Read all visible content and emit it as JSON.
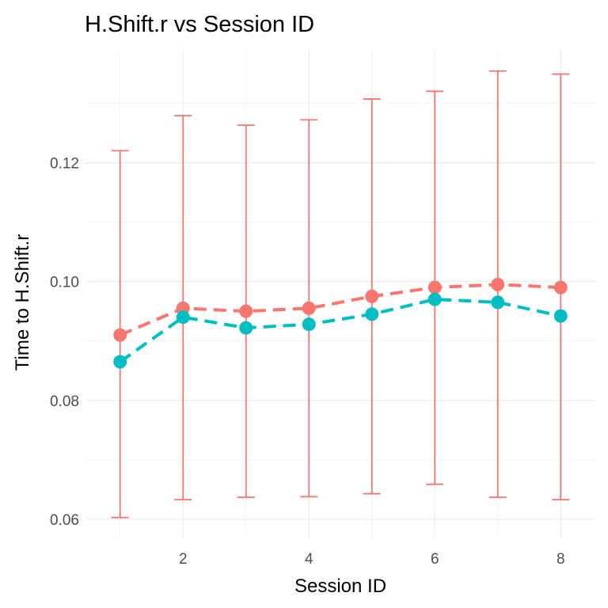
{
  "chart_data": {
    "type": "line",
    "title": "H.Shift.r vs Session ID",
    "xlabel": "Session ID",
    "ylabel": "Time to H.Shift.r",
    "x": [
      1,
      2,
      3,
      4,
      5,
      6,
      7,
      8
    ],
    "xlim": [
      0.45,
      8.55
    ],
    "ylim": [
      0.0568,
      0.1391
    ],
    "x_ticks": [
      2,
      4,
      6,
      8
    ],
    "x_tick_labels": [
      "2",
      "4",
      "6",
      "8"
    ],
    "y_ticks": [
      0.06,
      0.08,
      0.1,
      0.12
    ],
    "y_tick_labels": [
      "0.06",
      "0.08",
      "0.10",
      "0.12"
    ],
    "grid": true,
    "legend": "none",
    "series": [
      {
        "color": "#F8766D",
        "line_style": "dashed",
        "values": [
          0.091,
          0.0955,
          0.095,
          0.0955,
          0.0975,
          0.099,
          0.0995,
          0.099
        ],
        "error_bars": {
          "low": [
            0.0603,
            0.0633,
            0.0637,
            0.0638,
            0.0643,
            0.0659,
            0.0637,
            0.0633
          ],
          "high": [
            0.122,
            0.1279,
            0.1263,
            0.1272,
            0.1307,
            0.132,
            0.1354,
            0.1349
          ]
        }
      },
      {
        "color": "#00BFC4",
        "line_style": "dashed",
        "values": [
          0.0865,
          0.094,
          0.0922,
          0.0928,
          0.0945,
          0.097,
          0.0965,
          0.0942
        ]
      }
    ]
  }
}
